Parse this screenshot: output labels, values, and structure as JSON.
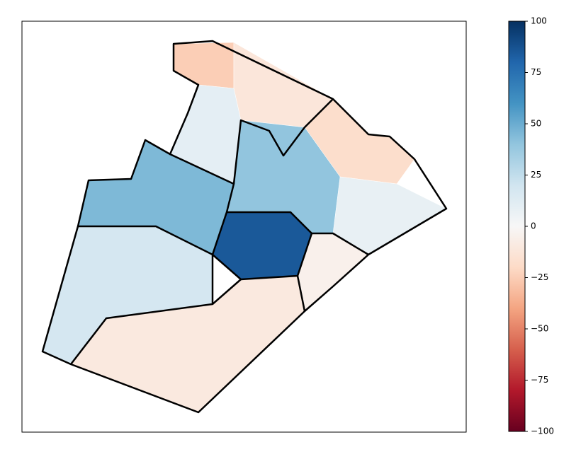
{
  "chart_data": {
    "type": "choropleth",
    "regions": {
      "values": [
        -25,
        -12,
        -18,
        8,
        -5,
        10,
        45,
        85,
        40,
        18,
        -10
      ]
    },
    "colorbar": {
      "lim": [
        -100,
        100
      ],
      "colormap": "RdBu",
      "ticks": [
        {
          "value": -100,
          "label": "−100"
        },
        {
          "value": -75,
          "label": "−75"
        },
        {
          "value": -50,
          "label": "−50"
        },
        {
          "value": -25,
          "label": "−25"
        },
        0,
        25,
        50,
        75,
        100
      ]
    }
  }
}
